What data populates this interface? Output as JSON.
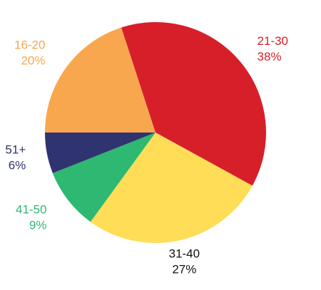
{
  "chart_data": {
    "type": "pie",
    "title": "",
    "start_angle_deg": 180,
    "direction": "clockwise",
    "categories": [
      "16-20",
      "21-30",
      "31-40",
      "41-50",
      "51+"
    ],
    "values": [
      20,
      38,
      27,
      9,
      6
    ],
    "value_labels": [
      "20%",
      "38%",
      "27%",
      "9%",
      "6%"
    ],
    "colors": [
      "#F9A74E",
      "#D71F2A",
      "#FFDD57",
      "#2EB872",
      "#2F3470"
    ],
    "legend": "none"
  }
}
